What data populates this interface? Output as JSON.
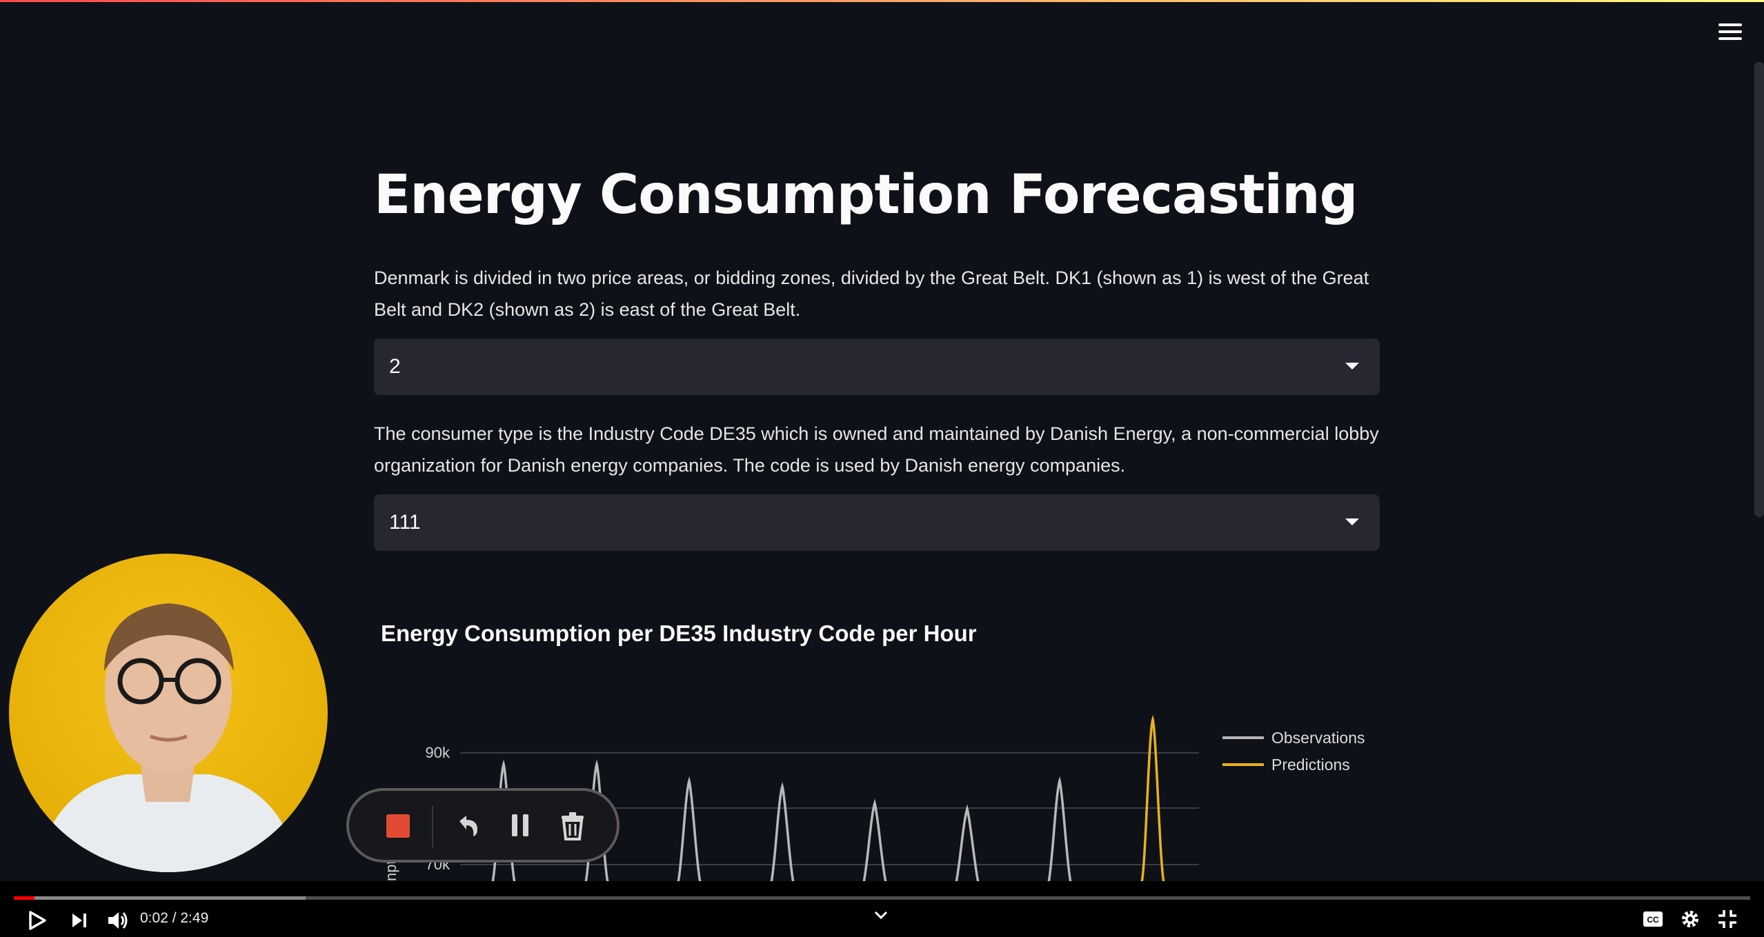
{
  "app": {
    "title": "Energy Consumption Forecasting",
    "menu_icon": "hamburger-menu-icon"
  },
  "intro": {
    "bidding_zone_text": "Denmark is divided in two price areas, or bidding zones, divided by the Great Belt. DK1 (shown as 1) is west of the Great Belt and DK2 (shown as 2) is east of the Great Belt.",
    "bidding_zone_value": "2",
    "consumer_type_text": "The consumer type is the Industry Code DE35 which is owned and maintained by Danish Energy, a non-commercial lobby organization for Danish energy companies. The code is used by Danish energy companies.",
    "consumer_type_value": "111"
  },
  "chart_data": {
    "type": "line",
    "title": "Energy Consumption per DE35 Industry Code per Hour",
    "ylabel": "",
    "ytick_labels": [
      "90k",
      "70k"
    ],
    "legend": [
      "Observations",
      "Predictions"
    ],
    "legend_position": "top-right",
    "series": [
      {
        "name": "Observations",
        "color": "#b8b8b8",
        "peaks": [
          88000,
          88000,
          85000,
          84000,
          81000,
          80000,
          85000
        ]
      },
      {
        "name": "Predictions",
        "color": "#e8b21e",
        "peaks": [
          96000
        ]
      }
    ]
  },
  "recorder": {
    "icons": [
      "stop-record-icon",
      "undo-icon",
      "pause-icon",
      "trash-icon"
    ]
  },
  "player": {
    "time": "0:02 / 2:49",
    "progress_played_fraction": 0.012,
    "progress_buffered_fraction": 0.168,
    "icons": [
      "play-icon",
      "next-icon",
      "volume-icon",
      "chevron-down-icon",
      "captions-icon",
      "settings-icon",
      "exit-fullscreen-icon"
    ]
  }
}
